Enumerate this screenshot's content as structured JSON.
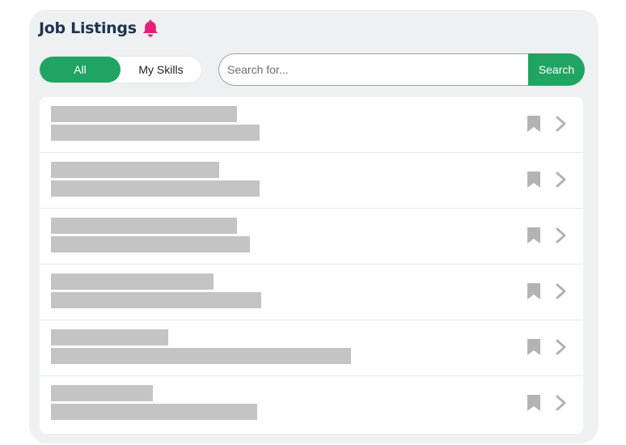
{
  "header": {
    "title": "Job Listings",
    "icon": "bell-icon",
    "icon_color": "#e91e7a"
  },
  "filter": {
    "options": [
      {
        "label": "All",
        "active": true
      },
      {
        "label": "My Skills",
        "active": false
      }
    ],
    "accent_color": "#1fa463"
  },
  "search": {
    "value": "",
    "placeholder": "Search for...",
    "button_label": "Search"
  },
  "listings": [
    {
      "icons": [
        "bookmark-icon",
        "chevron-right-icon"
      ]
    },
    {
      "icons": [
        "bookmark-icon",
        "chevron-right-icon"
      ]
    },
    {
      "icons": [
        "bookmark-icon",
        "chevron-right-icon"
      ]
    },
    {
      "icons": [
        "bookmark-icon",
        "chevron-right-icon"
      ]
    },
    {
      "icons": [
        "bookmark-icon",
        "chevron-right-icon"
      ]
    },
    {
      "icons": [
        "bookmark-icon",
        "chevron-right-icon"
      ]
    }
  ]
}
